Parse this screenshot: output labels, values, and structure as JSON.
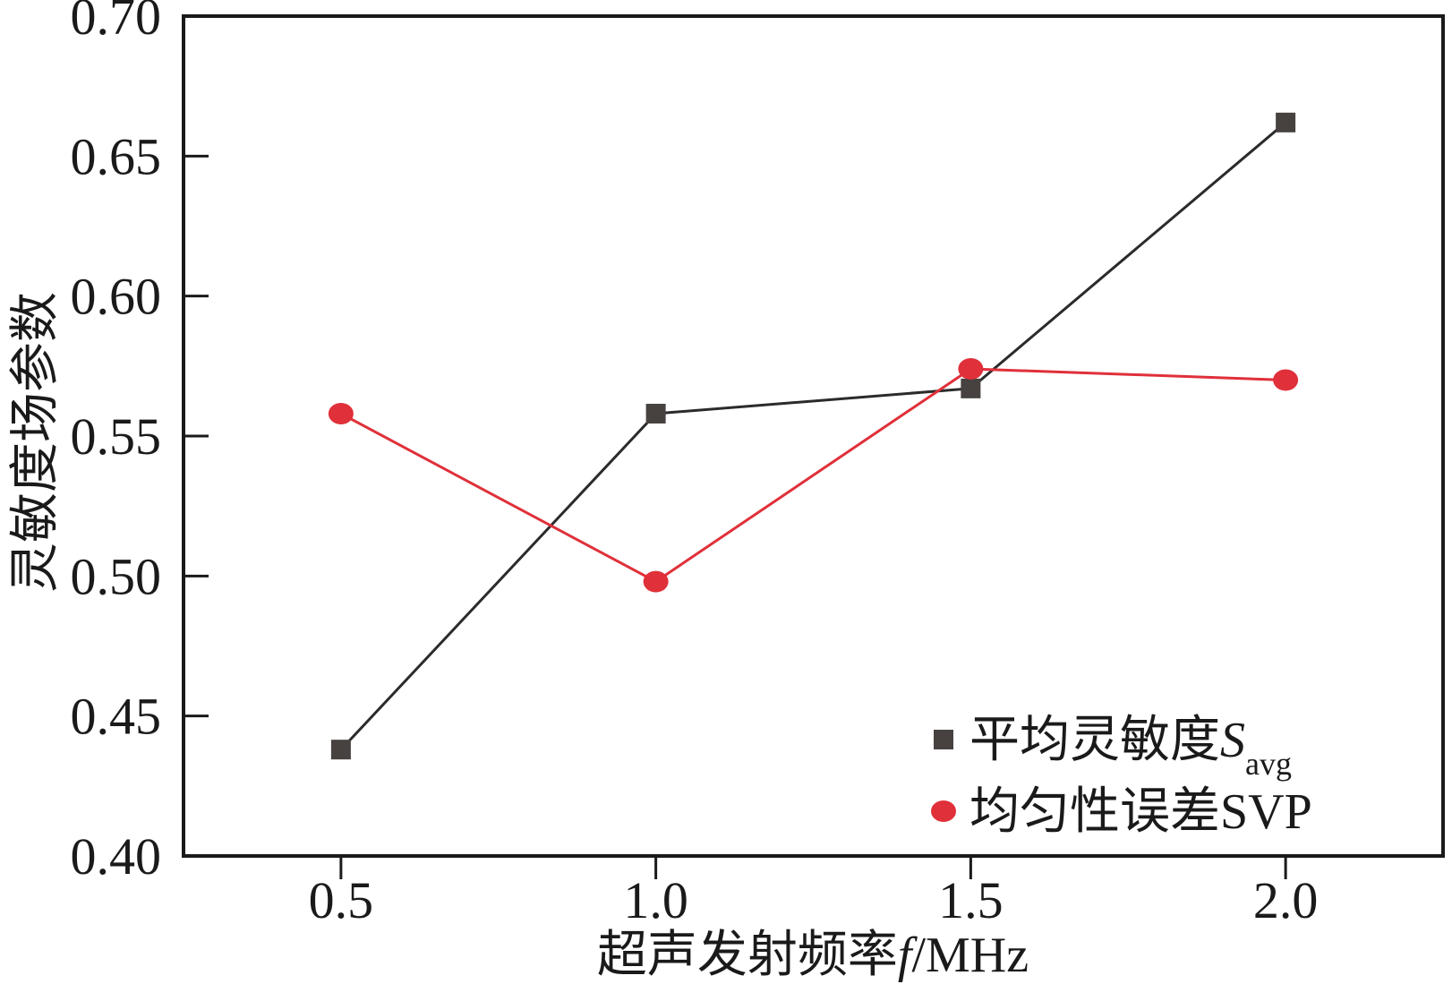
{
  "chart_data": {
    "type": "line",
    "x": [
      0.5,
      1.0,
      1.5,
      2.0
    ],
    "xlim": [
      0.25,
      2.25
    ],
    "ylim": [
      0.4,
      0.7
    ],
    "x_ticks": [
      0.5,
      1.0,
      1.5,
      2.0
    ],
    "x_tick_labels": [
      "0.5",
      "1.0",
      "1.5",
      "2.0"
    ],
    "y_ticks": [
      0.4,
      0.45,
      0.5,
      0.55,
      0.6,
      0.65,
      0.7
    ],
    "y_tick_labels": [
      "0.40",
      "0.45",
      "0.50",
      "0.55",
      "0.60",
      "0.65",
      "0.70"
    ],
    "xlabel": {
      "prefix": "超声发射频率",
      "italic": "f",
      "suffix": "/MHz"
    },
    "ylabel": "灵敏度场参数",
    "grid": false,
    "legend_position": "bottom-right",
    "series": [
      {
        "name": "平均灵敏度S",
        "name_main": "平均灵敏度",
        "name_italic": "S",
        "name_subscript": "avg",
        "marker": "square",
        "color": "#2b2b2b",
        "marker_color": "#474240",
        "values": [
          0.438,
          0.558,
          0.567,
          0.662
        ]
      },
      {
        "name": "均匀性误差SVP",
        "marker": "circle",
        "color": "#e0303a",
        "marker_color": "#e0303a",
        "values": [
          0.558,
          0.498,
          0.574,
          0.57
        ]
      }
    ]
  }
}
